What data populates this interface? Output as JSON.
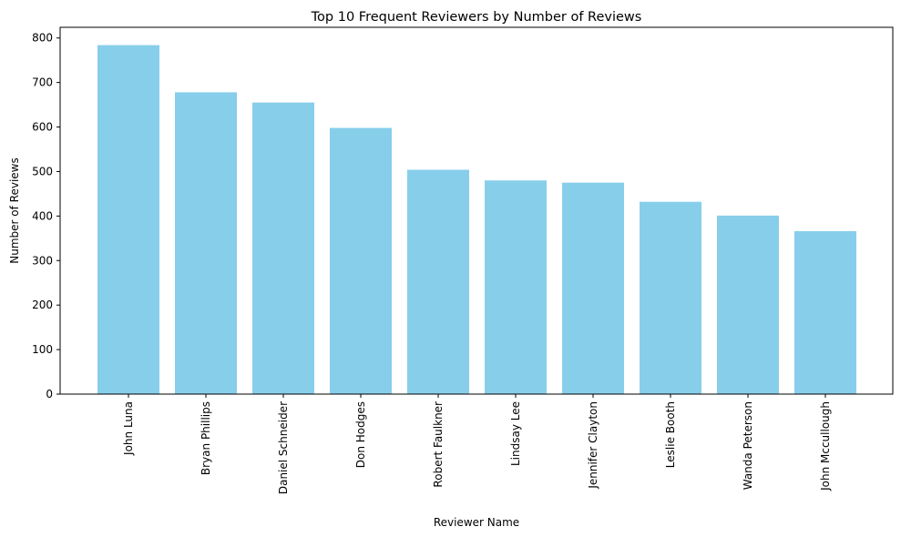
{
  "chart_data": {
    "type": "bar",
    "title": "Top 10 Frequent Reviewers by Number of Reviews",
    "xlabel": "Reviewer Name",
    "ylabel": "Number of Reviews",
    "categories": [
      "John Luna",
      "Bryan Phillips",
      "Daniel Schneider",
      "Don Hodges",
      "Robert Faulkner",
      "Lindsay Lee",
      "Jennifer Clayton",
      "Leslie Booth",
      "Wanda Peterson",
      "John Mccullough"
    ],
    "values": [
      784,
      678,
      655,
      598,
      504,
      480,
      475,
      432,
      401,
      366
    ],
    "ylim": [
      0,
      824
    ],
    "yticks": [
      0,
      100,
      200,
      300,
      400,
      500,
      600,
      700,
      800
    ],
    "bar_color": "#87CEEB",
    "grid": false,
    "legend": "none"
  }
}
